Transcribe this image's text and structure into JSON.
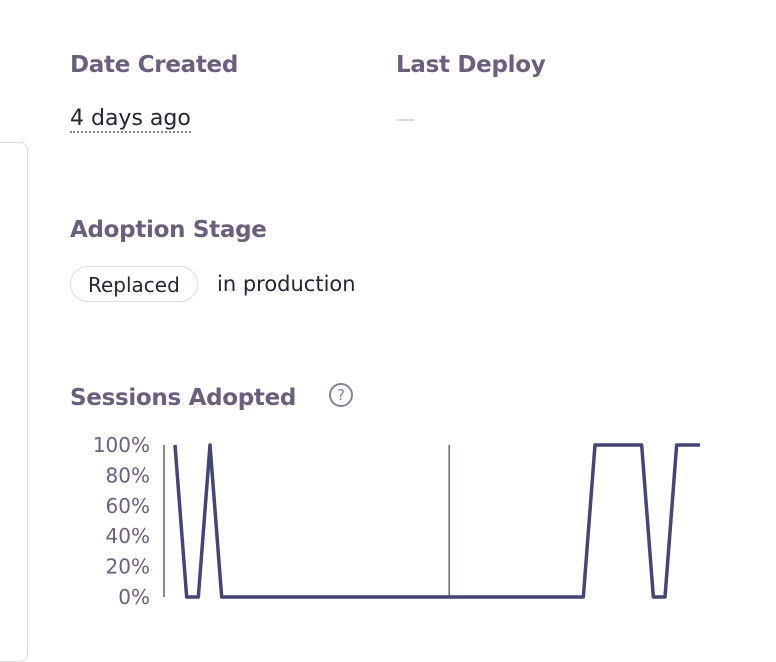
{
  "date_created": {
    "label": "Date Created",
    "value": "4 days ago"
  },
  "last_deploy": {
    "label": "Last Deploy",
    "value": "—"
  },
  "adoption_stage": {
    "label": "Adoption Stage",
    "badge": "Replaced",
    "suffix": "in production"
  },
  "sessions_adopted": {
    "label": "Sessions Adopted",
    "help_icon": "question-circle-icon"
  },
  "colors": {
    "line": "#444674",
    "heading": "#6c5f7c",
    "text": "#2b2233",
    "marker": "#6c5f7c"
  },
  "chart_data": {
    "type": "line",
    "x": [
      0,
      1,
      2,
      3,
      4,
      5,
      6,
      7,
      8,
      9,
      10,
      11,
      12,
      13,
      14,
      15,
      16,
      17,
      18,
      19,
      20,
      21,
      22,
      23,
      24,
      25,
      26,
      27,
      28,
      29,
      30,
      31,
      32,
      33,
      34,
      35,
      36,
      37,
      38,
      39,
      40,
      41,
      42,
      43,
      44,
      45
    ],
    "series": [
      {
        "values": [
          100,
          0,
          0,
          100,
          0,
          0,
          0,
          0,
          0,
          0,
          0,
          0,
          0,
          0,
          0,
          0,
          0,
          0,
          0,
          0,
          0,
          0,
          0,
          0,
          0,
          0,
          0,
          0,
          0,
          0,
          0,
          0,
          0,
          0,
          0,
          0,
          100,
          100,
          100,
          100,
          100,
          0,
          0,
          100,
          100,
          100
        ]
      }
    ],
    "yticks": [
      "0%",
      "20%",
      "40%",
      "60%",
      "80%",
      "100%"
    ],
    "ylim": [
      0,
      100
    ],
    "marker_x": 23.5,
    "grid": false,
    "legend": "none"
  }
}
